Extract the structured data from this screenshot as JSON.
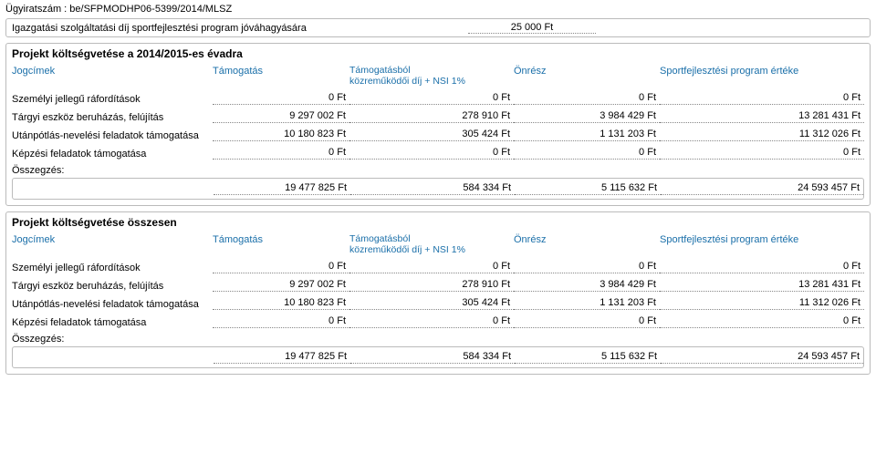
{
  "doc_number": "Ügyiratszám : be/SFPMODHP06-5399/2014/MLSZ",
  "fee": {
    "label": "Igazgatási szolgáltatási díj sportfejlesztési program jóváhagyására",
    "value": "25 000 Ft"
  },
  "colors": {
    "header_text": "#1a6fa9",
    "border": "#bbbbbb",
    "dotted": "#888888"
  },
  "columns": {
    "c0": "Jogcímek",
    "c1": "Támogatás",
    "c2a": "Támogatásból",
    "c2b": "közreműködői díj + NSI 1%",
    "c3": "Önrész",
    "c4": "Sportfejlesztési program értéke"
  },
  "row_labels": {
    "r1": "Személyi jellegű ráfordítások",
    "r2": "Tárgyi eszköz beruházás, felújítás",
    "r3": "Utánpótlás-nevelési feladatok támogatása",
    "r4": "Képzési feladatok támogatása",
    "sum": "Összegzés:"
  },
  "section1": {
    "title": "Projekt költségvetése a 2014/2015-es évadra",
    "rows": {
      "r1": {
        "c1": "0 Ft",
        "c2": "0 Ft",
        "c3": "0 Ft",
        "c4": "0 Ft"
      },
      "r2": {
        "c1": "9 297 002 Ft",
        "c2": "278 910 Ft",
        "c3": "3 984 429 Ft",
        "c4": "13 281 431 Ft"
      },
      "r3": {
        "c1": "10 180 823 Ft",
        "c2": "305 424 Ft",
        "c3": "1 131 203 Ft",
        "c4": "11 312 026 Ft"
      },
      "r4": {
        "c1": "0 Ft",
        "c2": "0 Ft",
        "c3": "0 Ft",
        "c4": "0 Ft"
      }
    },
    "sum": {
      "c1": "19 477 825 Ft",
      "c2": "584 334 Ft",
      "c3": "5 115 632 Ft",
      "c4": "24 593 457 Ft"
    }
  },
  "section2": {
    "title": "Projekt költségvetése összesen",
    "rows": {
      "r1": {
        "c1": "0 Ft",
        "c2": "0 Ft",
        "c3": "0 Ft",
        "c4": "0 Ft"
      },
      "r2": {
        "c1": "9 297 002 Ft",
        "c2": "278 910 Ft",
        "c3": "3 984 429 Ft",
        "c4": "13 281 431 Ft"
      },
      "r3": {
        "c1": "10 180 823 Ft",
        "c2": "305 424 Ft",
        "c3": "1 131 203 Ft",
        "c4": "11 312 026 Ft"
      },
      "r4": {
        "c1": "0 Ft",
        "c2": "0 Ft",
        "c3": "0 Ft",
        "c4": "0 Ft"
      }
    },
    "sum": {
      "c1": "19 477 825 Ft",
      "c2": "584 334 Ft",
      "c3": "5 115 632 Ft",
      "c4": "24 593 457 Ft"
    }
  }
}
